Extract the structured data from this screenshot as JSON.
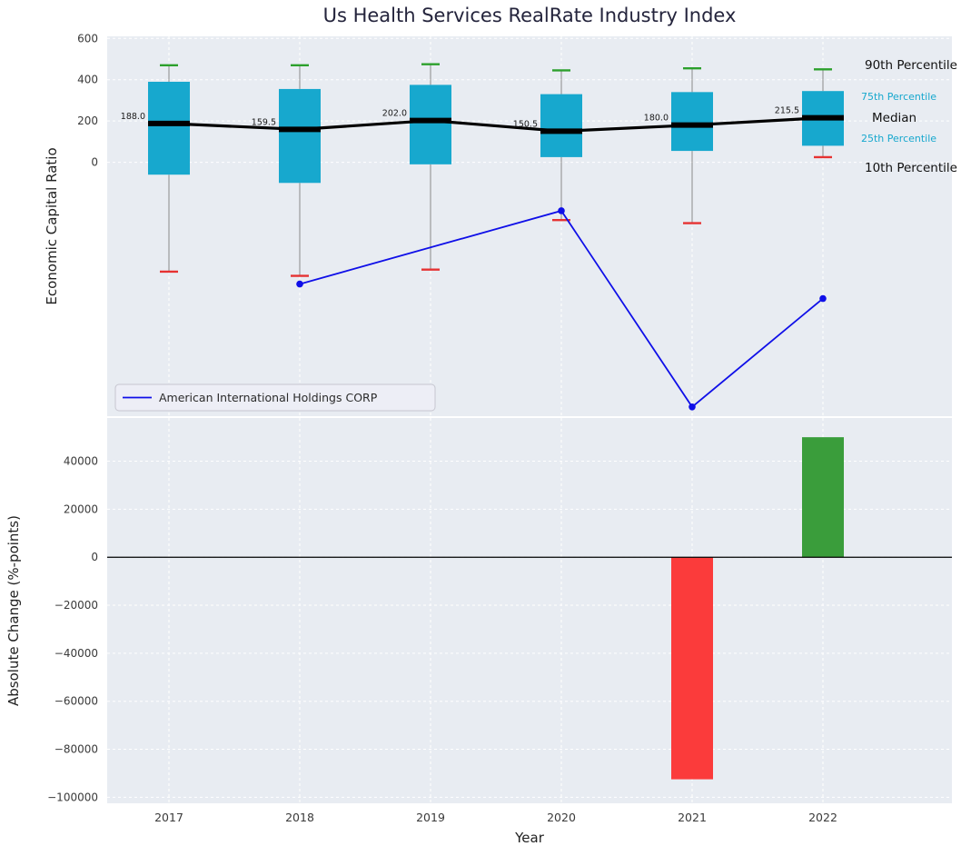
{
  "colors": {
    "panel_bg": "#e8ecf2",
    "grid": "#ffffff",
    "box_fill": "#17a8ce",
    "whisker": "#8a8a8a",
    "p90_cap": "#2ca02c",
    "p10_cap": "#e63232",
    "median": "#000000",
    "company_line": "#0f0fe8",
    "bar_negative": "#fb3b3b",
    "bar_positive": "#3a9d3b",
    "tick_text": "#3a3a3a",
    "label_text": "#222222",
    "percentile_text_cyan": "#17a8ce"
  },
  "chart_data": [
    {
      "type": "box",
      "title": "Us Health Services RealRate Industry Index",
      "ylabel": "Economic Capital Ratio",
      "categories": [
        "2017",
        "2018",
        "2019",
        "2020",
        "2021",
        "2022"
      ],
      "ylim": [
        -1230,
        610
      ],
      "yticks": [
        600,
        400,
        200,
        0
      ],
      "grid": true,
      "boxes": [
        {
          "year": "2017",
          "p10": -530,
          "q1": -60,
          "median": 188.0,
          "q3": 390,
          "p90": 470,
          "median_label": "188.0"
        },
        {
          "year": "2018",
          "p10": -550,
          "q1": -100,
          "median": 159.5,
          "q3": 355,
          "p90": 470,
          "median_label": "159.5"
        },
        {
          "year": "2019",
          "p10": -520,
          "q1": -10,
          "median": 202.0,
          "q3": 375,
          "p90": 475,
          "median_label": "202.0"
        },
        {
          "year": "2020",
          "p10": -280,
          "q1": 25,
          "median": 150.5,
          "q3": 330,
          "p90": 445,
          "median_label": "150.5"
        },
        {
          "year": "2021",
          "p10": -295,
          "q1": 55,
          "median": 180.0,
          "q3": 340,
          "p90": 455,
          "median_label": "180.0"
        },
        {
          "year": "2022",
          "p10": 25,
          "q1": 80,
          "median": 215.5,
          "q3": 345,
          "p90": 450,
          "median_label": "215.5"
        }
      ],
      "series": [
        {
          "name": "American International Holdings CORP",
          "x": [
            "2018",
            "2020",
            "2021",
            "2022"
          ],
          "values": [
            -590,
            -235,
            -1185,
            -660
          ]
        }
      ],
      "percentile_labels": [
        "90th Percentile",
        "75th Percentile",
        "Median",
        "25th Percentile",
        "10th Percentile"
      ],
      "legend": {
        "entries": [
          "American International Holdings CORP"
        ],
        "position": "lower-left"
      }
    },
    {
      "type": "bar",
      "xlabel": "Year",
      "ylabel": "Absolute Change (%-points)",
      "categories": [
        "2017",
        "2018",
        "2019",
        "2020",
        "2021",
        "2022"
      ],
      "values": [
        null,
        null,
        null,
        null,
        -92500,
        50000
      ],
      "yticks": [
        40000,
        20000,
        0,
        -20000,
        -40000,
        -60000,
        -80000,
        -100000
      ],
      "ylim": [
        -102500,
        58000
      ],
      "zero_line": true,
      "grid": true
    }
  ]
}
